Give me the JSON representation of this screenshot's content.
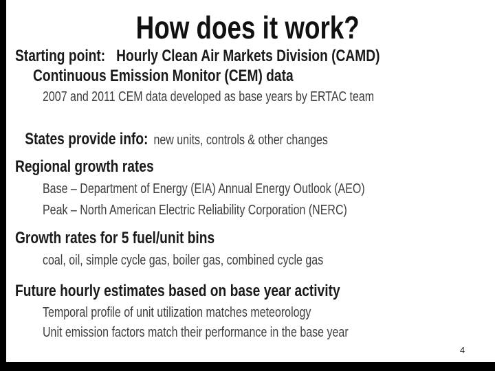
{
  "slide": {
    "title": "How does it work?",
    "page_number": "4",
    "colors": {
      "background": "#ffffff",
      "title_text": "#111111",
      "header_text": "#1a1a1a",
      "detail_text": "#3d3d3d",
      "frame": "#000000"
    },
    "bullets": {
      "starting_point": {
        "line1": "Starting point:   Hourly Clean Air Markets Division (CAMD)",
        "line2": "Continuous Emission Monitor (CEM) data",
        "detail": "2007 and 2011 CEM data developed as base years by ERTAC team"
      },
      "states": {
        "head": "States provide info:",
        "tail": "new units, controls & other changes"
      },
      "regional": {
        "head": "Regional growth rates",
        "detail1": "Base – Department of Energy (EIA) Annual Energy Outlook (AEO)",
        "detail2": "Peak – North American Electric Reliability Corporation (NERC)"
      },
      "growth_bins": {
        "head": "Growth rates for 5 fuel/unit bins",
        "detail": "coal, oil, simple cycle gas, boiler gas, combined cycle gas"
      },
      "future": {
        "head": "Future hourly estimates based on base year activity",
        "detail1": "Temporal profile of unit utilization matches meteorology",
        "detail2": "Unit emission factors match their performance in the base year"
      }
    }
  }
}
